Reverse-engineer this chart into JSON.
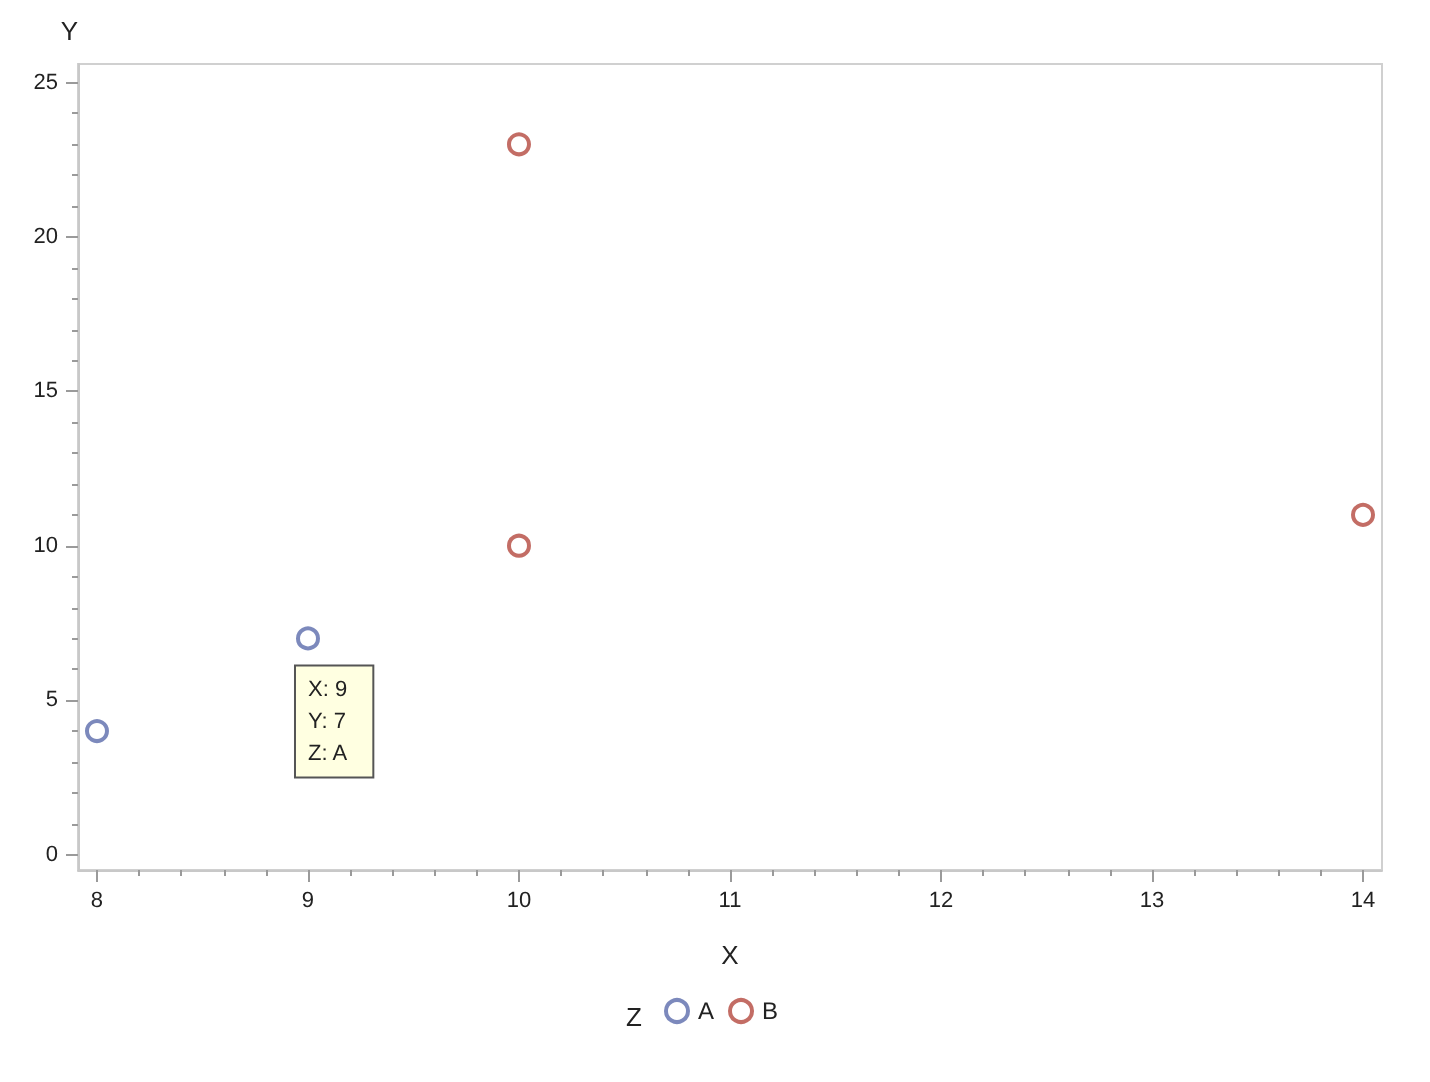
{
  "chart_data": {
    "type": "scatter",
    "xlabel": "X",
    "ylabel": "Y",
    "legend_title": "Z",
    "series": [
      {
        "name": "A",
        "color": "#5b6bab",
        "x": [
          8,
          9
        ],
        "values": [
          4,
          7
        ]
      },
      {
        "name": "B",
        "color": "#b4493e",
        "x": [
          10,
          10,
          14
        ],
        "values": [
          23,
          10,
          11
        ]
      }
    ],
    "xlim": [
      7.91,
      14.09
    ],
    "ylim": [
      -0.5,
      25.6
    ],
    "xticks": [
      8,
      {
        "value": 8.2,
        "label": null
      },
      {
        "value": 8.4,
        "label": null
      },
      {
        "value": 8.6,
        "label": null
      },
      {
        "value": 8.8,
        "label": null
      },
      9,
      {
        "value": 9.2,
        "label": null
      },
      {
        "value": 9.4,
        "label": null
      },
      {
        "value": 9.6,
        "label": null
      },
      {
        "value": 9.8,
        "label": null
      },
      10,
      {
        "value": 10.2,
        "label": null
      },
      {
        "value": 10.4,
        "label": null
      },
      {
        "value": 10.6,
        "label": null
      },
      {
        "value": 10.8,
        "label": null
      },
      11,
      {
        "value": 11.2,
        "label": null
      },
      {
        "value": 11.4,
        "label": null
      },
      {
        "value": 11.6,
        "label": null
      },
      {
        "value": 11.8,
        "label": null
      },
      12,
      {
        "value": 12.2,
        "label": null
      },
      {
        "value": 12.4,
        "label": null
      },
      {
        "value": 12.6,
        "label": null
      },
      {
        "value": 12.8,
        "label": null
      },
      13,
      {
        "value": 13.2,
        "label": null
      },
      {
        "value": 13.4,
        "label": null
      },
      {
        "value": 13.6,
        "label": null
      },
      {
        "value": 13.8,
        "label": null
      },
      14
    ],
    "yticks": [
      0,
      {
        "value": 1,
        "label": null
      },
      {
        "value": 2,
        "label": null
      },
      {
        "value": 3,
        "label": null
      },
      {
        "value": 4,
        "label": null
      },
      5,
      {
        "value": 6,
        "label": null
      },
      {
        "value": 7,
        "label": null
      },
      {
        "value": 8,
        "label": null
      },
      {
        "value": 9,
        "label": null
      },
      10,
      {
        "value": 11,
        "label": null
      },
      {
        "value": 12,
        "label": null
      },
      {
        "value": 13,
        "label": null
      },
      {
        "value": 14,
        "label": null
      },
      15,
      {
        "value": 16,
        "label": null
      },
      {
        "value": 17,
        "label": null
      },
      {
        "value": 18,
        "label": null
      },
      {
        "value": 19,
        "label": null
      },
      20,
      {
        "value": 21,
        "label": null
      },
      {
        "value": 22,
        "label": null
      },
      {
        "value": 23,
        "label": null
      },
      {
        "value": 24,
        "label": null
      },
      25
    ],
    "grid": false,
    "legend": "bottom",
    "marker": "circle",
    "annotations": [
      {
        "text": "X: 9\nY: 7\nZ: A",
        "x": 9,
        "y": 7
      }
    ]
  }
}
